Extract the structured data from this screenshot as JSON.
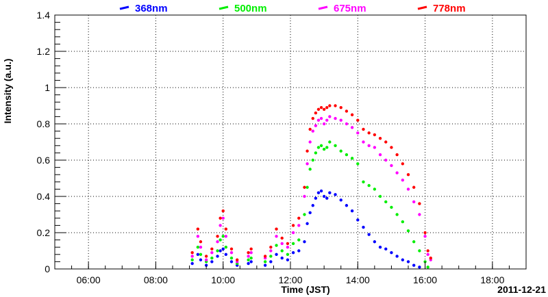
{
  "chart_data": {
    "type": "scatter",
    "title": "",
    "xlabel": "Time (JST)",
    "ylabel": "Intensity (a.u.)",
    "date_label": "2011-12-21",
    "xlim": [
      "05:00",
      "19:00"
    ],
    "ylim": [
      0,
      1.4
    ],
    "x_ticks": [
      "06:00",
      "08:00",
      "10:00",
      "12:00",
      "14:00",
      "16:00",
      "18:00"
    ],
    "y_ticks": [
      "0",
      "0.2",
      "0.4",
      "0.6",
      "0.8",
      "1",
      "1.2",
      "1.4"
    ],
    "grid": true,
    "legend_position": "top",
    "series": [
      {
        "name": "368nm",
        "color": "#0000ff",
        "points": [
          [
            "09:05",
            0.03
          ],
          [
            "09:15",
            0.08
          ],
          [
            "09:20",
            0.05
          ],
          [
            "09:30",
            0.02
          ],
          [
            "09:40",
            0.04
          ],
          [
            "09:50",
            0.07
          ],
          [
            "09:55",
            0.1
          ],
          [
            "10:00",
            0.11
          ],
          [
            "10:05",
            0.08
          ],
          [
            "10:15",
            0.04
          ],
          [
            "10:25",
            0.02
          ],
          [
            "10:45",
            0.03
          ],
          [
            "10:50",
            0.04
          ],
          [
            "11:15",
            0.02
          ],
          [
            "11:25",
            0.04
          ],
          [
            "11:35",
            0.08
          ],
          [
            "11:45",
            0.06
          ],
          [
            "11:55",
            0.05
          ],
          [
            "12:05",
            0.09
          ],
          [
            "12:15",
            0.1
          ],
          [
            "12:25",
            0.15
          ],
          [
            "12:30",
            0.25
          ],
          [
            "12:35",
            0.31
          ],
          [
            "12:40",
            0.35
          ],
          [
            "12:45",
            0.39
          ],
          [
            "12:50",
            0.42
          ],
          [
            "12:55",
            0.43
          ],
          [
            "13:00",
            0.4
          ],
          [
            "13:05",
            0.39
          ],
          [
            "13:10",
            0.42
          ],
          [
            "13:20",
            0.41
          ],
          [
            "13:30",
            0.38
          ],
          [
            "13:40",
            0.35
          ],
          [
            "13:50",
            0.32
          ],
          [
            "14:00",
            0.27
          ],
          [
            "14:10",
            0.23
          ],
          [
            "14:20",
            0.19
          ],
          [
            "14:30",
            0.15
          ],
          [
            "14:40",
            0.12
          ],
          [
            "14:50",
            0.11
          ],
          [
            "15:00",
            0.09
          ],
          [
            "15:10",
            0.07
          ],
          [
            "15:20",
            0.05
          ],
          [
            "15:30",
            0.04
          ],
          [
            "15:40",
            0.02
          ],
          [
            "15:50",
            0.01
          ]
        ]
      },
      {
        "name": "500nm",
        "color": "#00ee00",
        "points": [
          [
            "09:05",
            0.05
          ],
          [
            "09:15",
            0.12
          ],
          [
            "09:20",
            0.08
          ],
          [
            "09:30",
            0.04
          ],
          [
            "09:40",
            0.06
          ],
          [
            "09:50",
            0.1
          ],
          [
            "09:55",
            0.16
          ],
          [
            "10:00",
            0.18
          ],
          [
            "10:05",
            0.12
          ],
          [
            "10:15",
            0.06
          ],
          [
            "10:25",
            0.03
          ],
          [
            "10:45",
            0.05
          ],
          [
            "10:50",
            0.06
          ],
          [
            "11:15",
            0.04
          ],
          [
            "11:25",
            0.07
          ],
          [
            "11:35",
            0.13
          ],
          [
            "11:45",
            0.1
          ],
          [
            "11:55",
            0.08
          ],
          [
            "12:05",
            0.14
          ],
          [
            "12:15",
            0.16
          ],
          [
            "12:25",
            0.3
          ],
          [
            "12:30",
            0.45
          ],
          [
            "12:35",
            0.55
          ],
          [
            "12:40",
            0.6
          ],
          [
            "12:45",
            0.64
          ],
          [
            "12:50",
            0.67
          ],
          [
            "12:55",
            0.68
          ],
          [
            "13:00",
            0.66
          ],
          [
            "13:05",
            0.67
          ],
          [
            "13:10",
            0.7
          ],
          [
            "13:20",
            0.68
          ],
          [
            "13:30",
            0.65
          ],
          [
            "13:40",
            0.63
          ],
          [
            "13:50",
            0.61
          ],
          [
            "14:00",
            0.58
          ],
          [
            "14:10",
            0.48
          ],
          [
            "14:20",
            0.46
          ],
          [
            "14:30",
            0.44
          ],
          [
            "14:40",
            0.4
          ],
          [
            "14:50",
            0.37
          ],
          [
            "15:00",
            0.34
          ],
          [
            "15:10",
            0.3
          ],
          [
            "15:20",
            0.26
          ],
          [
            "15:30",
            0.21
          ],
          [
            "15:40",
            0.15
          ],
          [
            "15:50",
            0.1
          ],
          [
            "16:00",
            0.04
          ],
          [
            "16:05",
            0.01
          ]
        ]
      },
      {
        "name": "675nm",
        "color": "#ff00ff",
        "points": [
          [
            "09:05",
            0.07
          ],
          [
            "09:15",
            0.18
          ],
          [
            "09:20",
            0.12
          ],
          [
            "09:30",
            0.05
          ],
          [
            "09:40",
            0.09
          ],
          [
            "09:50",
            0.15
          ],
          [
            "09:55",
            0.24
          ],
          [
            "10:00",
            0.28
          ],
          [
            "10:05",
            0.18
          ],
          [
            "10:15",
            0.09
          ],
          [
            "10:25",
            0.04
          ],
          [
            "10:45",
            0.07
          ],
          [
            "10:50",
            0.09
          ],
          [
            "11:15",
            0.06
          ],
          [
            "11:25",
            0.1
          ],
          [
            "11:35",
            0.18
          ],
          [
            "11:45",
            0.14
          ],
          [
            "11:55",
            0.12
          ],
          [
            "12:05",
            0.2
          ],
          [
            "12:15",
            0.24
          ],
          [
            "12:25",
            0.4
          ],
          [
            "12:30",
            0.58
          ],
          [
            "12:35",
            0.7
          ],
          [
            "12:40",
            0.76
          ],
          [
            "12:45",
            0.79
          ],
          [
            "12:50",
            0.82
          ],
          [
            "12:55",
            0.83
          ],
          [
            "13:00",
            0.8
          ],
          [
            "13:05",
            0.82
          ],
          [
            "13:10",
            0.84
          ],
          [
            "13:20",
            0.83
          ],
          [
            "13:30",
            0.82
          ],
          [
            "13:40",
            0.8
          ],
          [
            "13:50",
            0.78
          ],
          [
            "14:00",
            0.75
          ],
          [
            "14:10",
            0.7
          ],
          [
            "14:20",
            0.68
          ],
          [
            "14:30",
            0.67
          ],
          [
            "14:40",
            0.63
          ],
          [
            "14:50",
            0.6
          ],
          [
            "15:00",
            0.57
          ],
          [
            "15:10",
            0.53
          ],
          [
            "15:20",
            0.49
          ],
          [
            "15:30",
            0.44
          ],
          [
            "15:40",
            0.37
          ],
          [
            "15:50",
            0.3
          ],
          [
            "16:00",
            0.18
          ],
          [
            "16:05",
            0.08
          ],
          [
            "16:10",
            0.05
          ]
        ]
      },
      {
        "name": "778nm",
        "color": "#ff0000",
        "points": [
          [
            "09:05",
            0.09
          ],
          [
            "09:15",
            0.22
          ],
          [
            "09:20",
            0.15
          ],
          [
            "09:30",
            0.07
          ],
          [
            "09:40",
            0.11
          ],
          [
            "09:50",
            0.18
          ],
          [
            "09:55",
            0.28
          ],
          [
            "10:00",
            0.32
          ],
          [
            "10:05",
            0.22
          ],
          [
            "10:15",
            0.11
          ],
          [
            "10:25",
            0.05
          ],
          [
            "10:45",
            0.09
          ],
          [
            "10:50",
            0.11
          ],
          [
            "11:15",
            0.07
          ],
          [
            "11:25",
            0.12
          ],
          [
            "11:35",
            0.22
          ],
          [
            "11:45",
            0.17
          ],
          [
            "11:55",
            0.14
          ],
          [
            "12:05",
            0.24
          ],
          [
            "12:15",
            0.28
          ],
          [
            "12:25",
            0.45
          ],
          [
            "12:30",
            0.65
          ],
          [
            "12:35",
            0.77
          ],
          [
            "12:40",
            0.83
          ],
          [
            "12:45",
            0.86
          ],
          [
            "12:50",
            0.88
          ],
          [
            "12:55",
            0.89
          ],
          [
            "13:00",
            0.88
          ],
          [
            "13:05",
            0.89
          ],
          [
            "13:10",
            0.9
          ],
          [
            "13:20",
            0.9
          ],
          [
            "13:30",
            0.89
          ],
          [
            "13:40",
            0.87
          ],
          [
            "13:50",
            0.85
          ],
          [
            "14:00",
            0.82
          ],
          [
            "14:10",
            0.77
          ],
          [
            "14:20",
            0.75
          ],
          [
            "14:30",
            0.74
          ],
          [
            "14:40",
            0.72
          ],
          [
            "14:50",
            0.7
          ],
          [
            "15:00",
            0.67
          ],
          [
            "15:10",
            0.63
          ],
          [
            "15:20",
            0.58
          ],
          [
            "15:30",
            0.52
          ],
          [
            "15:40",
            0.45
          ],
          [
            "15:50",
            0.36
          ],
          [
            "16:00",
            0.2
          ],
          [
            "16:05",
            0.1
          ],
          [
            "16:10",
            0.06
          ]
        ]
      }
    ]
  }
}
